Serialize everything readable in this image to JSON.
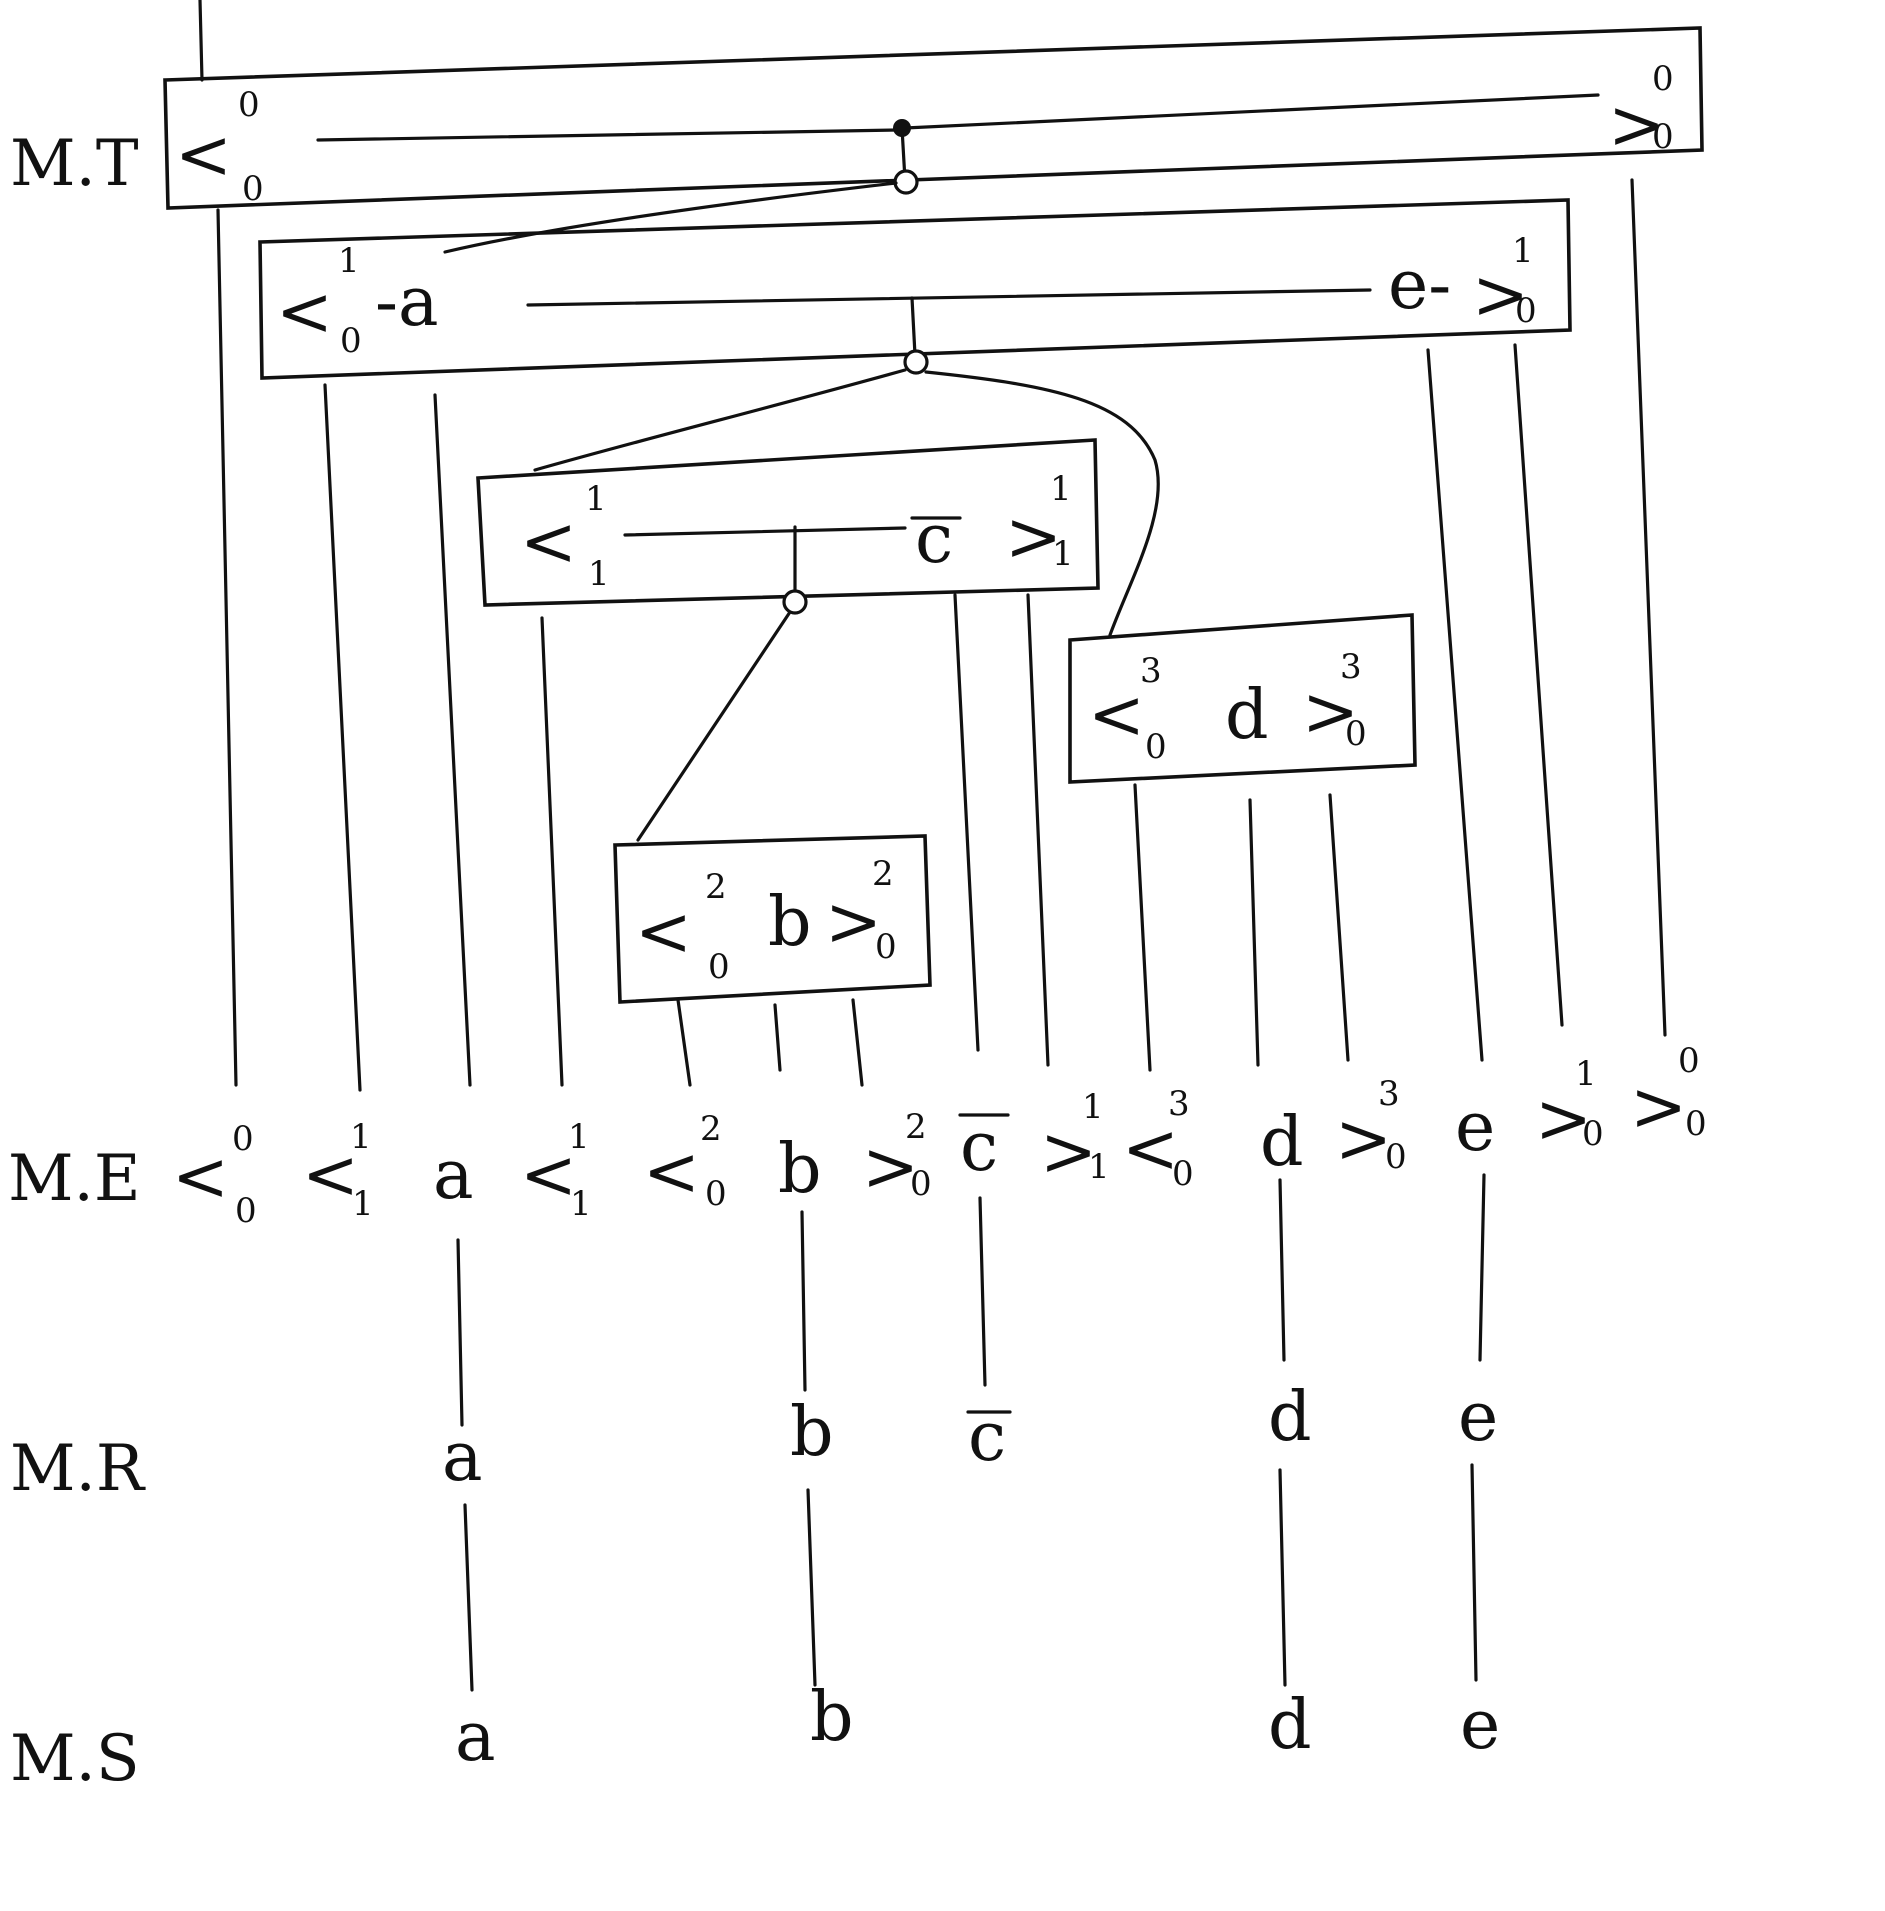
{
  "rows": {
    "mt": "M.T",
    "me": "M.E",
    "mr": "M.R",
    "ms": "M.S"
  },
  "boxes": {
    "b0": {
      "left": "<",
      "left_sup": "0",
      "left_sub": "0",
      "right": ">",
      "right_sup": "0",
      "right_sub": "0"
    },
    "b1": {
      "left": "<",
      "left_sup": "1",
      "left_sub": "0",
      "text_a": "-a",
      "text_e": "e-",
      "right": ">",
      "right_sup": "1",
      "right_sub": "0"
    },
    "b2": {
      "left": "<",
      "left_sup": "1",
      "left_sub": "1",
      "text_c": "c",
      "right": ">",
      "right_sup": "1",
      "right_sub": "1"
    },
    "b3": {
      "left": "<",
      "left_sup": "3",
      "left_sub": "0",
      "text_d": "d",
      "right": ">",
      "right_sup": "3",
      "right_sub": "0"
    },
    "b4": {
      "left": "<",
      "left_sup": "2",
      "left_sub": "0",
      "text_b": "b",
      "right": ">",
      "right_sup": "2",
      "right_sub": "0"
    }
  },
  "me_tokens": [
    {
      "sym": "<",
      "sup": "0",
      "sub": "0"
    },
    {
      "sym": "<",
      "sup": "1",
      "sub": "1"
    },
    {
      "sym": "a"
    },
    {
      "sym": "<",
      "sup": "1",
      "sub": "1"
    },
    {
      "sym": "<",
      "sup": "2",
      "sub": "0"
    },
    {
      "sym": "b"
    },
    {
      "sym": ">",
      "sup": "2",
      "sub": "0"
    },
    {
      "sym": "c"
    },
    {
      "sym": ">",
      "sup": "1",
      "sub": "1"
    },
    {
      "sym": "<",
      "sup": "3",
      "sub": "0"
    },
    {
      "sym": "d"
    },
    {
      "sym": ">",
      "sup": "3",
      "sub": "0"
    },
    {
      "sym": "e"
    },
    {
      "sym": ">",
      "sup": "1",
      "sub": "0"
    },
    {
      "sym": ">",
      "sup": "0",
      "sub": "0"
    }
  ],
  "mr_tokens": [
    "a",
    "b",
    "c",
    "d",
    "e"
  ],
  "ms_tokens": [
    "a",
    "b",
    "d",
    "e"
  ]
}
